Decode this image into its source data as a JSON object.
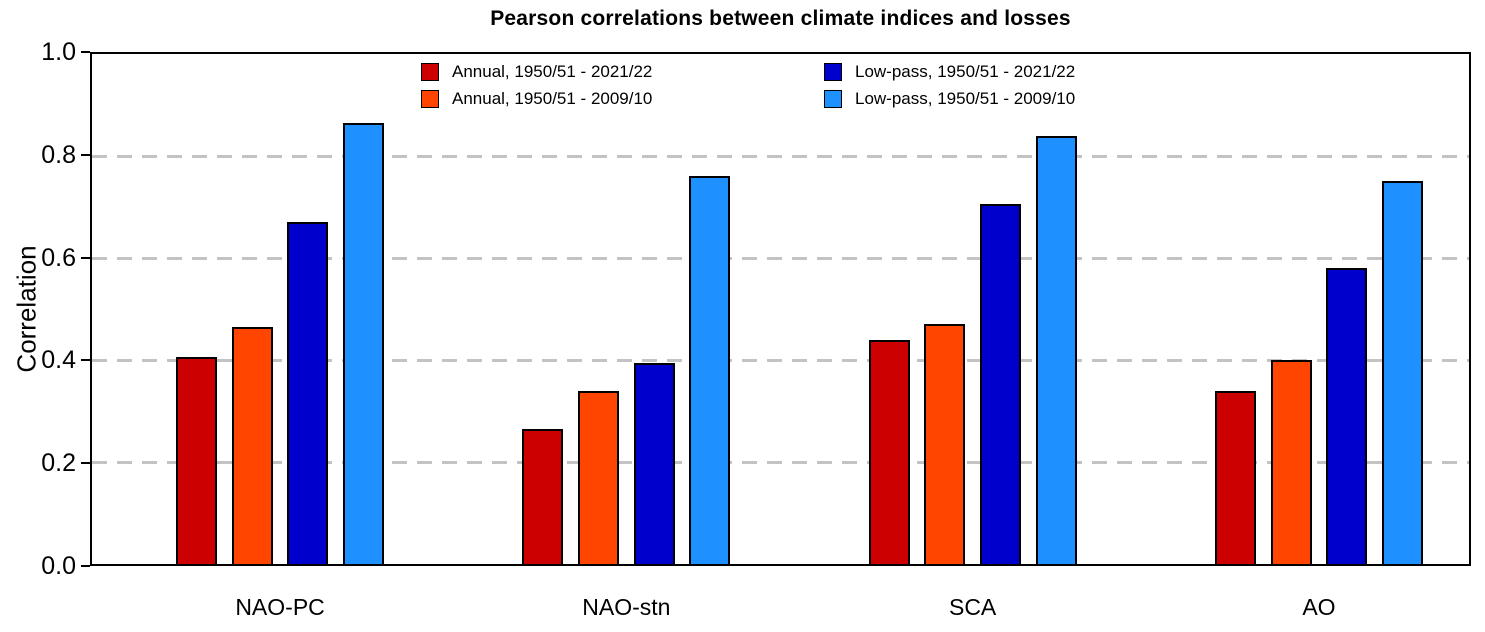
{
  "title": "Pearson correlations between climate indices and losses",
  "y_axis": {
    "label": "Correlation",
    "tick_labels": [
      "0.0",
      "0.2",
      "0.4",
      "0.6",
      "0.8",
      "1.0"
    ]
  },
  "x_axis": {
    "categories": [
      "NAO-PC",
      "NAO-stn",
      "SCA",
      "AO"
    ]
  },
  "colors": {
    "annual_full": "#cc0000",
    "annual_short": "#ff4500",
    "lowpass_full": "#0000cd",
    "lowpass_short": "#1e90ff",
    "gridline": "#c3c3c3",
    "axis": "#000000"
  },
  "chart_data": {
    "type": "bar",
    "title": "Pearson correlations between climate indices and losses",
    "xlabel": "",
    "ylabel": "Correlation",
    "ylim": [
      0,
      1
    ],
    "yticks": [
      0,
      0.2,
      0.4,
      0.6,
      0.8,
      1
    ],
    "grid": {
      "horizontal": true,
      "style": "dashed",
      "color": "#c3c3c3",
      "at": [
        0.2,
        0.4,
        0.6,
        0.8
      ]
    },
    "legend_position": "top, inside plot, two columns",
    "categories": [
      "NAO-PC",
      "NAO-stn",
      "SCA",
      "AO"
    ],
    "series": [
      {
        "name": "Annual, 1950/51 - 2021/22",
        "color": "#cc0000",
        "values": [
          0.405,
          0.265,
          0.44,
          0.34
        ]
      },
      {
        "name": "Annual, 1950/51 - 2009/10",
        "color": "#ff4500",
        "values": [
          0.465,
          0.34,
          0.47,
          0.4
        ]
      },
      {
        "name": "Low-pass, 1950/51 - 2021/22",
        "color": "#0000cd",
        "values": [
          0.67,
          0.395,
          0.705,
          0.58
        ]
      },
      {
        "name": "Low-pass, 1950/51 - 2009/10",
        "color": "#1e90ff",
        "values": [
          0.865,
          0.76,
          0.84,
          0.75
        ]
      }
    ]
  }
}
